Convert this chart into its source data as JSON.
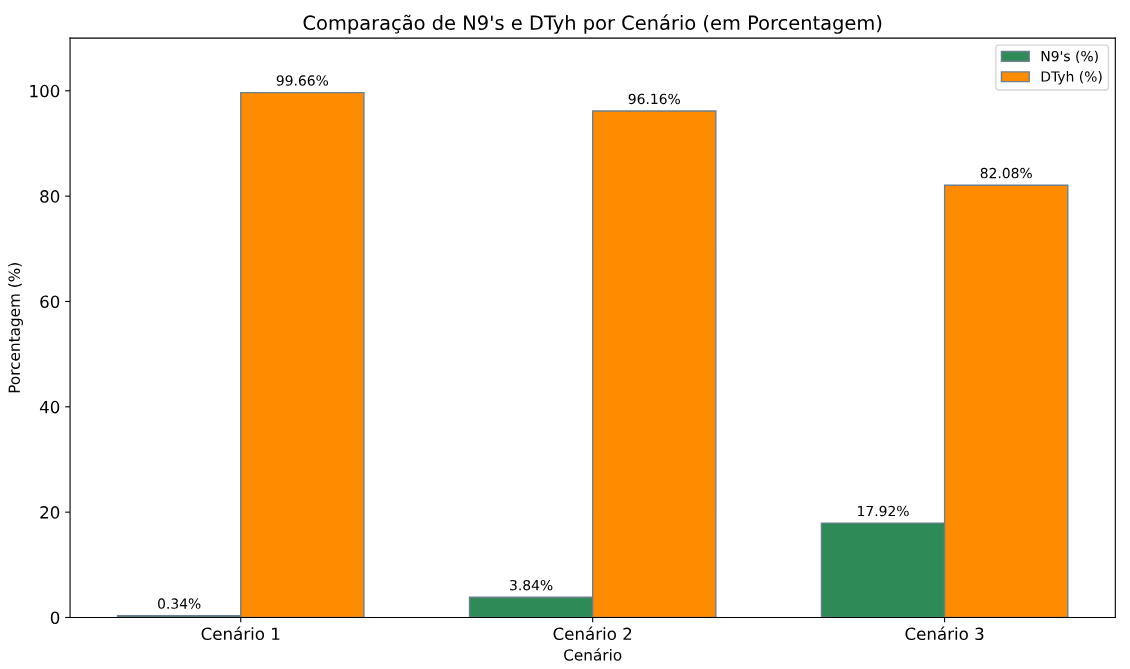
{
  "chart_data": {
    "type": "bar",
    "title": "Comparação de N9's e DTyh por Cenário (em Porcentagem)",
    "xlabel": "Cenário",
    "ylabel": "Porcentagem (%)",
    "categories": [
      "Cenário 1",
      "Cenário 2",
      "Cenário 3"
    ],
    "series": [
      {
        "name": "N9's (%)",
        "color": "#2e8b57",
        "values": [
          0.34,
          3.84,
          17.92
        ],
        "value_labels": [
          "0.34%",
          "3.84%",
          "17.92%"
        ]
      },
      {
        "name": "DTyh (%)",
        "color": "#ff8c00",
        "values": [
          99.66,
          96.16,
          82.08
        ],
        "value_labels": [
          "99.66%",
          "96.16%",
          "82.08%"
        ]
      }
    ],
    "ylim": [
      0,
      110
    ],
    "yticks": [
      0,
      20,
      40,
      60,
      80,
      100
    ],
    "grid": false,
    "legend": "top right"
  }
}
